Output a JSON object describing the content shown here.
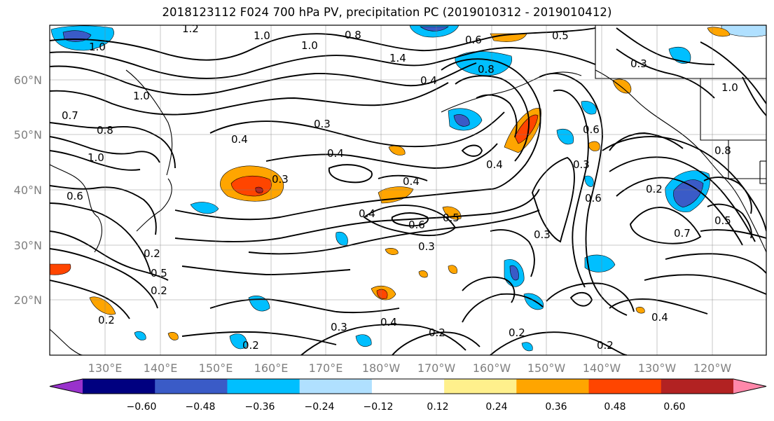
{
  "title": "2018123112 F024 700 hPa PV, precipitation PC (2019010312 - 2019010412)",
  "lat_labels": [
    "60°N",
    "50°N",
    "40°N",
    "30°N",
    "20°N"
  ],
  "lon_labels": [
    "130°E",
    "140°E",
    "150°E",
    "160°E",
    "170°E",
    "180°W",
    "170°W",
    "160°W",
    "150°W",
    "140°W",
    "130°W",
    "120°W"
  ],
  "colorbar": {
    "colors": [
      "#9932CC",
      "#000080",
      "#3A5BC7",
      "#00BFFF",
      "#B0E0FF",
      "#FFFFFF",
      "#FFF08C",
      "#FFA500",
      "#FF4500",
      "#B22222",
      "#FF88AA"
    ],
    "tick_labels": [
      "−0.60",
      "−0.48",
      "−0.36",
      "−0.24",
      "−0.12",
      "0.12",
      "0.24",
      "0.36",
      "0.48",
      "0.60"
    ]
  },
  "contour_labels": [
    "1.2",
    "1.0",
    "0.8",
    "1.4",
    "0.5",
    "1.0",
    "0.4",
    "0.6",
    "0.8",
    "0.3",
    "1.0",
    "0.7",
    "0.8",
    "1.0",
    "0.4",
    "0.3",
    "0.4",
    "0.4",
    "0.3",
    "0.4",
    "0.6",
    "0.5",
    "0.4",
    "0.6",
    "0.3",
    "0.6",
    "0.2",
    "0.7",
    "0.5",
    "0.3",
    "0.2",
    "0.5",
    "0.2",
    "0.3",
    "0.4",
    "0.3",
    "0.2",
    "0.2",
    "0.2",
    "0.2",
    "0.4",
    "0.2",
    "0.8",
    "1.0",
    "0.6",
    "1.0"
  ]
}
